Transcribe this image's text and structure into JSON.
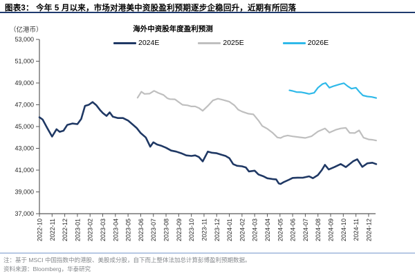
{
  "header": {
    "title": "图表3：  今年 5 月以来，市场对港美中资股盈利预期逐步企稳回升，近期有所回落"
  },
  "footer": {
    "note": "注：基于 MSCI 中国指数中的港股、美股成分股，自下而上整体法加总计算彭博盈利预期数据。",
    "source": "资料来源：Bloomberg，华泰研究"
  },
  "colors": {
    "header_rule": "#1F3A6E",
    "footer_rule": "#B6C8E4",
    "axis": "#595959",
    "tick_text": "#262626",
    "navy": "#1F3864",
    "gray": "#BFBFBF",
    "cyan": "#2FB9E9"
  },
  "chart_data": {
    "type": "line",
    "title": "海外中资股年度盈利预测",
    "unit_label": "（亿港币）",
    "xlabel": "",
    "ylabel": "",
    "ylim": [
      37000,
      53000
    ],
    "ytick_step": 2000,
    "grid": false,
    "legend_position": "top",
    "x_index_max": 26.55,
    "categories": [
      "2022-10",
      "2022-11",
      "2022-12",
      "2023-01",
      "2023-02",
      "2023-03",
      "2023-04",
      "2023-05",
      "2023-06",
      "2023-07",
      "2023-08",
      "2023-09",
      "2023-10",
      "2023-11",
      "2023-12",
      "2024-01",
      "2024-02",
      "2024-03",
      "2024-04",
      "2024-05",
      "2024-06",
      "2024-07",
      "2024-08",
      "2024-09",
      "2024-10",
      "2024-11",
      "2024-12"
    ],
    "series": [
      {
        "name": "2024E",
        "color": "#1F3864",
        "stroke_width": 2.6,
        "points": [
          [
            0,
            45850
          ],
          [
            0.25,
            45650
          ],
          [
            0.6,
            44900
          ],
          [
            1,
            44080
          ],
          [
            1.35,
            44750
          ],
          [
            1.6,
            44520
          ],
          [
            1.9,
            44620
          ],
          [
            2.2,
            45150
          ],
          [
            2.6,
            45280
          ],
          [
            3,
            45220
          ],
          [
            3.3,
            45700
          ],
          [
            3.6,
            46900
          ],
          [
            3.9,
            47000
          ],
          [
            4.2,
            47250
          ],
          [
            4.5,
            46950
          ],
          [
            4.8,
            46500
          ],
          [
            5,
            46250
          ],
          [
            5.3,
            45980
          ],
          [
            5.55,
            46300
          ],
          [
            5.8,
            45900
          ],
          [
            6.2,
            45780
          ],
          [
            6.6,
            45780
          ],
          [
            7,
            45550
          ],
          [
            7.4,
            45150
          ],
          [
            7.7,
            44850
          ],
          [
            8,
            44400
          ],
          [
            8.4,
            44000
          ],
          [
            8.75,
            43150
          ],
          [
            9,
            43550
          ],
          [
            9.3,
            43350
          ],
          [
            9.6,
            43250
          ],
          [
            10,
            43050
          ],
          [
            10.4,
            42800
          ],
          [
            10.8,
            42700
          ],
          [
            11.2,
            42550
          ],
          [
            11.6,
            42350
          ],
          [
            12,
            42300
          ],
          [
            12.3,
            42350
          ],
          [
            12.6,
            42200
          ],
          [
            12.9,
            41800
          ],
          [
            13.3,
            42700
          ],
          [
            13.6,
            42600
          ],
          [
            14,
            42550
          ],
          [
            14.4,
            42400
          ],
          [
            14.7,
            42300
          ],
          [
            15,
            42100
          ],
          [
            15.3,
            41550
          ],
          [
            15.6,
            41400
          ],
          [
            16,
            41350
          ],
          [
            16.3,
            41250
          ],
          [
            16.55,
            40880
          ],
          [
            17,
            40950
          ],
          [
            17.3,
            40600
          ],
          [
            17.7,
            40430
          ],
          [
            18,
            40250
          ],
          [
            18.4,
            40180
          ],
          [
            18.7,
            40150
          ],
          [
            18.9,
            39780
          ],
          [
            19.05,
            39730
          ],
          [
            19.3,
            39900
          ],
          [
            19.7,
            40110
          ],
          [
            20,
            40280
          ],
          [
            20.4,
            40310
          ],
          [
            20.8,
            40300
          ],
          [
            21.3,
            40430
          ],
          [
            21.6,
            40260
          ],
          [
            22,
            40550
          ],
          [
            22.3,
            41000
          ],
          [
            22.55,
            41480
          ],
          [
            22.85,
            41060
          ],
          [
            23.3,
            41280
          ],
          [
            23.8,
            41560
          ],
          [
            24.2,
            41280
          ],
          [
            24.8,
            41830
          ],
          [
            25.1,
            42000
          ],
          [
            25.5,
            41300
          ],
          [
            25.9,
            41620
          ],
          [
            26.3,
            41680
          ],
          [
            26.6,
            41550
          ]
        ]
      },
      {
        "name": "2025E",
        "color": "#BFBFBF",
        "stroke_width": 2.2,
        "points": [
          [
            7.75,
            47650
          ],
          [
            8.05,
            48200
          ],
          [
            8.3,
            48000
          ],
          [
            8.7,
            48020
          ],
          [
            9.05,
            48280
          ],
          [
            9.4,
            48080
          ],
          [
            9.8,
            47900
          ],
          [
            10.1,
            47600
          ],
          [
            10.3,
            47520
          ],
          [
            10.7,
            47500
          ],
          [
            11,
            47250
          ],
          [
            11.3,
            47000
          ],
          [
            11.7,
            46950
          ],
          [
            12,
            46850
          ],
          [
            12.3,
            46850
          ],
          [
            12.6,
            46700
          ],
          [
            12.9,
            46450
          ],
          [
            13.3,
            46900
          ],
          [
            13.7,
            47400
          ],
          [
            14.1,
            47560
          ],
          [
            14.5,
            47450
          ],
          [
            15,
            47280
          ],
          [
            15.4,
            46950
          ],
          [
            15.7,
            46550
          ],
          [
            16,
            46380
          ],
          [
            16.5,
            46180
          ],
          [
            16.9,
            46120
          ],
          [
            17.3,
            45550
          ],
          [
            17.6,
            45050
          ],
          [
            18,
            44800
          ],
          [
            18.4,
            44450
          ],
          [
            18.8,
            44000
          ],
          [
            19.05,
            43950
          ],
          [
            19.3,
            44100
          ],
          [
            19.6,
            44180
          ],
          [
            20,
            44100
          ],
          [
            20.5,
            44020
          ],
          [
            21,
            43950
          ],
          [
            21.5,
            44120
          ],
          [
            22,
            44550
          ],
          [
            22.55,
            44830
          ],
          [
            22.9,
            44450
          ],
          [
            23.4,
            44700
          ],
          [
            23.8,
            44830
          ],
          [
            24.2,
            44880
          ],
          [
            24.5,
            44420
          ],
          [
            24.9,
            44400
          ],
          [
            25.25,
            44650
          ],
          [
            25.6,
            43980
          ],
          [
            26,
            43820
          ],
          [
            26.3,
            43790
          ],
          [
            26.6,
            43720
          ]
        ]
      },
      {
        "name": "2026E",
        "color": "#2FB9E9",
        "stroke_width": 2.2,
        "points": [
          [
            19.75,
            48330
          ],
          [
            20,
            48270
          ],
          [
            20.3,
            48170
          ],
          [
            20.7,
            48150
          ],
          [
            21,
            48080
          ],
          [
            21.3,
            48000
          ],
          [
            21.7,
            48100
          ],
          [
            22,
            48570
          ],
          [
            22.35,
            48900
          ],
          [
            22.6,
            49000
          ],
          [
            22.9,
            48570
          ],
          [
            23.25,
            48720
          ],
          [
            23.7,
            48880
          ],
          [
            24.05,
            48980
          ],
          [
            24.35,
            48700
          ],
          [
            24.65,
            48480
          ],
          [
            25,
            48570
          ],
          [
            25.3,
            48150
          ],
          [
            25.55,
            47860
          ],
          [
            25.9,
            47760
          ],
          [
            26.25,
            47720
          ],
          [
            26.6,
            47620
          ]
        ]
      }
    ]
  }
}
